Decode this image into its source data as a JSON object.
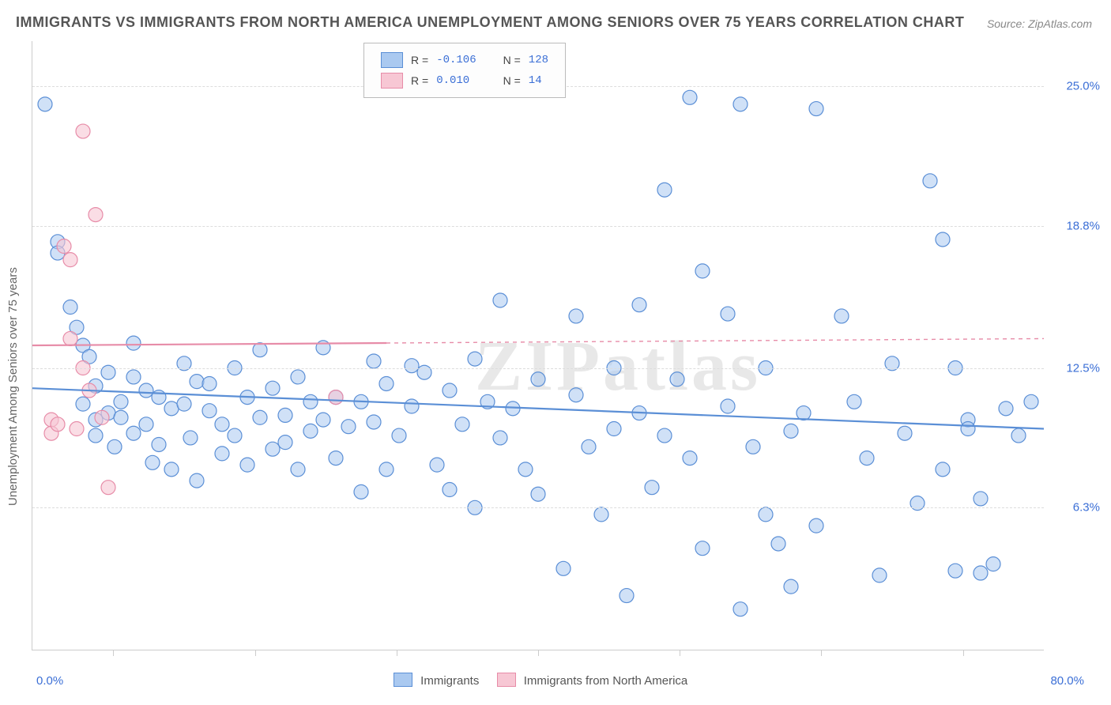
{
  "title": "IMMIGRANTS VS IMMIGRANTS FROM NORTH AMERICA UNEMPLOYMENT AMONG SENIORS OVER 75 YEARS CORRELATION CHART",
  "source_label": "Source:",
  "source_name": "ZipAtlas.com",
  "watermark": "ZIPatlas",
  "ylabel": "Unemployment Among Seniors over 75 years",
  "chart": {
    "type": "scatter",
    "background_color": "#ffffff",
    "grid_color": "#dddddd",
    "axis_color": "#cccccc",
    "tick_font_color": "#3b6fd6",
    "label_fontsize": 15,
    "title_fontsize": 18,
    "xlim": [
      0,
      80
    ],
    "ylim": [
      0,
      27
    ],
    "x_ticklabels": {
      "min": "0.0%",
      "max": "80.0%"
    },
    "y_ticklabels": [
      "6.3%",
      "12.5%",
      "18.8%",
      "25.0%"
    ],
    "y_tickvals": [
      6.3,
      12.5,
      18.8,
      25.0
    ],
    "x_minor_tick_positions_pct": [
      8,
      22,
      36,
      50,
      64,
      78,
      92
    ],
    "marker_radius": 9,
    "marker_stroke_width": 1.2,
    "trend_line_width": 2.2,
    "series": [
      {
        "name": "Immigrants",
        "fill_color": "#aac9f0",
        "stroke_color": "#5b8fd6",
        "fill_opacity": 0.55,
        "R": "-0.106",
        "N": "128",
        "trend": {
          "x1": 0,
          "y1": 11.6,
          "x2": 80,
          "y2": 9.8,
          "dash_after_x": null
        },
        "points": [
          [
            1,
            24.2
          ],
          [
            2,
            18.1
          ],
          [
            2,
            17.6
          ],
          [
            3,
            15.2
          ],
          [
            3.5,
            14.3
          ],
          [
            4,
            13.5
          ],
          [
            4,
            10.9
          ],
          [
            4.5,
            13.0
          ],
          [
            5,
            11.7
          ],
          [
            5,
            10.2
          ],
          [
            5,
            9.5
          ],
          [
            6,
            12.3
          ],
          [
            6,
            10.5
          ],
          [
            6.5,
            9.0
          ],
          [
            7,
            11.0
          ],
          [
            7,
            10.3
          ],
          [
            8,
            13.6
          ],
          [
            8,
            12.1
          ],
          [
            8,
            9.6
          ],
          [
            9,
            11.5
          ],
          [
            9,
            10.0
          ],
          [
            9.5,
            8.3
          ],
          [
            10,
            11.2
          ],
          [
            10,
            9.1
          ],
          [
            11,
            10.7
          ],
          [
            11,
            8.0
          ],
          [
            12,
            12.7
          ],
          [
            12,
            10.9
          ],
          [
            12.5,
            9.4
          ],
          [
            13,
            11.9
          ],
          [
            13,
            7.5
          ],
          [
            14,
            10.6
          ],
          [
            14,
            11.8
          ],
          [
            15,
            10.0
          ],
          [
            15,
            8.7
          ],
          [
            16,
            9.5
          ],
          [
            16,
            12.5
          ],
          [
            17,
            11.2
          ],
          [
            17,
            8.2
          ],
          [
            18,
            10.3
          ],
          [
            18,
            13.3
          ],
          [
            19,
            8.9
          ],
          [
            19,
            11.6
          ],
          [
            20,
            10.4
          ],
          [
            20,
            9.2
          ],
          [
            21,
            12.1
          ],
          [
            21,
            8.0
          ],
          [
            22,
            11.0
          ],
          [
            22,
            9.7
          ],
          [
            23,
            10.2
          ],
          [
            23,
            13.4
          ],
          [
            24,
            8.5
          ],
          [
            24,
            11.2
          ],
          [
            25,
            9.9
          ],
          [
            26,
            11.0
          ],
          [
            26,
            7.0
          ],
          [
            27,
            10.1
          ],
          [
            27,
            12.8
          ],
          [
            28,
            11.8
          ],
          [
            28,
            8.0
          ],
          [
            29,
            9.5
          ],
          [
            30,
            12.6
          ],
          [
            30,
            10.8
          ],
          [
            31,
            12.3
          ],
          [
            32,
            8.2
          ],
          [
            33,
            11.5
          ],
          [
            33,
            7.1
          ],
          [
            34,
            10.0
          ],
          [
            35,
            12.9
          ],
          [
            35,
            6.3
          ],
          [
            36,
            11.0
          ],
          [
            37,
            9.4
          ],
          [
            37,
            15.5
          ],
          [
            38,
            10.7
          ],
          [
            39,
            8.0
          ],
          [
            40,
            12.0
          ],
          [
            40,
            6.9
          ],
          [
            42,
            3.6
          ],
          [
            43,
            11.3
          ],
          [
            43,
            14.8
          ],
          [
            44,
            9.0
          ],
          [
            45,
            6.0
          ],
          [
            46,
            12.5
          ],
          [
            46,
            9.8
          ],
          [
            47,
            2.4
          ],
          [
            48,
            10.5
          ],
          [
            48,
            15.3
          ],
          [
            49,
            7.2
          ],
          [
            50,
            9.5
          ],
          [
            50,
            20.4
          ],
          [
            51,
            12.0
          ],
          [
            52,
            24.5
          ],
          [
            52,
            8.5
          ],
          [
            53,
            16.8
          ],
          [
            53,
            4.5
          ],
          [
            55,
            10.8
          ],
          [
            55,
            14.9
          ],
          [
            56,
            24.2
          ],
          [
            56,
            1.8
          ],
          [
            57,
            9.0
          ],
          [
            58,
            12.5
          ],
          [
            58,
            6.0
          ],
          [
            59,
            4.7
          ],
          [
            60,
            9.7
          ],
          [
            60,
            2.8
          ],
          [
            61,
            10.5
          ],
          [
            62,
            24.0
          ],
          [
            62,
            5.5
          ],
          [
            64,
            14.8
          ],
          [
            65,
            11.0
          ],
          [
            66,
            8.5
          ],
          [
            67,
            3.3
          ],
          [
            68,
            12.7
          ],
          [
            69,
            9.6
          ],
          [
            70,
            6.5
          ],
          [
            71,
            20.8
          ],
          [
            72,
            18.2
          ],
          [
            72,
            8.0
          ],
          [
            73,
            12.5
          ],
          [
            73,
            3.5
          ],
          [
            74,
            10.2
          ],
          [
            74,
            9.8
          ],
          [
            75,
            3.4
          ],
          [
            75,
            6.7
          ],
          [
            76,
            3.8
          ],
          [
            77,
            10.7
          ],
          [
            78,
            9.5
          ],
          [
            79,
            11.0
          ]
        ]
      },
      {
        "name": "Immigrants from North America",
        "fill_color": "#f7c7d4",
        "stroke_color": "#e78ca8",
        "fill_opacity": 0.6,
        "R": " 0.010",
        "N": " 14",
        "trend": {
          "x1": 0,
          "y1": 13.5,
          "x2": 80,
          "y2": 13.8,
          "dash_after_x": 28
        },
        "points": [
          [
            1.5,
            10.2
          ],
          [
            1.5,
            9.6
          ],
          [
            2,
            10.0
          ],
          [
            2.5,
            17.9
          ],
          [
            3,
            17.3
          ],
          [
            3,
            13.8
          ],
          [
            3.5,
            9.8
          ],
          [
            4,
            23.0
          ],
          [
            4,
            12.5
          ],
          [
            4.5,
            11.5
          ],
          [
            5,
            19.3
          ],
          [
            5.5,
            10.3
          ],
          [
            6,
            7.2
          ],
          [
            24,
            11.2
          ]
        ]
      }
    ],
    "legend_bottom": [
      {
        "swatch_fill": "#aac9f0",
        "swatch_stroke": "#5b8fd6",
        "label": "Immigrants"
      },
      {
        "swatch_fill": "#f7c7d4",
        "swatch_stroke": "#e78ca8",
        "label": "Immigrants from North America"
      }
    ]
  }
}
